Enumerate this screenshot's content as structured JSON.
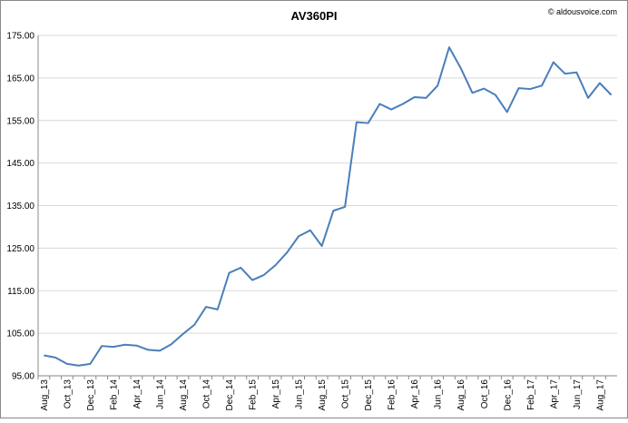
{
  "chart_data": {
    "type": "line",
    "title": "AV360PI",
    "annotation": "© aldousvoice.com",
    "categories": [
      "Aug_13",
      null,
      "Oct_13",
      null,
      "Dec_13",
      null,
      "Feb_14",
      null,
      "Apr_14",
      null,
      "Jun_14",
      null,
      "Aug_14",
      null,
      "Oct_14",
      null,
      "Dec_14",
      null,
      "Feb_15",
      null,
      "Apr_15",
      null,
      "Jun_15",
      null,
      "Aug_15",
      null,
      "Oct_15",
      null,
      "Dec_15",
      null,
      "Feb_16",
      null,
      "Apr_16",
      null,
      "Jun_16",
      null,
      "Aug_16",
      null,
      "Oct_16",
      null,
      "Dec_16",
      null,
      "Feb_17",
      null,
      "Apr_17",
      null,
      "Jun_17",
      null,
      "Aug_17",
      null
    ],
    "series": [
      {
        "name": "AV360PI",
        "color": "#4a7ebb",
        "values": [
          99.8,
          99.3,
          97.8,
          97.4,
          97.8,
          102,
          101.8,
          102.3,
          102.1,
          101.1,
          100.9,
          102.4,
          104.8,
          107,
          111.2,
          110.6,
          119.2,
          120.4,
          117.5,
          118.7,
          121,
          124,
          127.8,
          129.2,
          125.5,
          133.8,
          134.7,
          154.6,
          154.4,
          158.9,
          157.6,
          158.9,
          160.5,
          160.3,
          163.2,
          172.2,
          167.3,
          161.5,
          162.5,
          161,
          157,
          162.6,
          162.4,
          163.2,
          168.7,
          166,
          166.3,
          160.3,
          163.8,
          161
        ]
      }
    ],
    "ylim": [
      95,
      175
    ],
    "yticks": [
      {
        "value": 95,
        "label": "95.00"
      },
      {
        "value": 105,
        "label": "105.00"
      },
      {
        "value": 115,
        "label": "115.00"
      },
      {
        "value": 125,
        "label": "125.00"
      },
      {
        "value": 135,
        "label": "135.00"
      },
      {
        "value": 145,
        "label": "145.00"
      },
      {
        "value": 155,
        "label": "155.00"
      },
      {
        "value": 165,
        "label": "165.00"
      },
      {
        "value": 175,
        "label": "175.00"
      }
    ],
    "grid": true
  }
}
